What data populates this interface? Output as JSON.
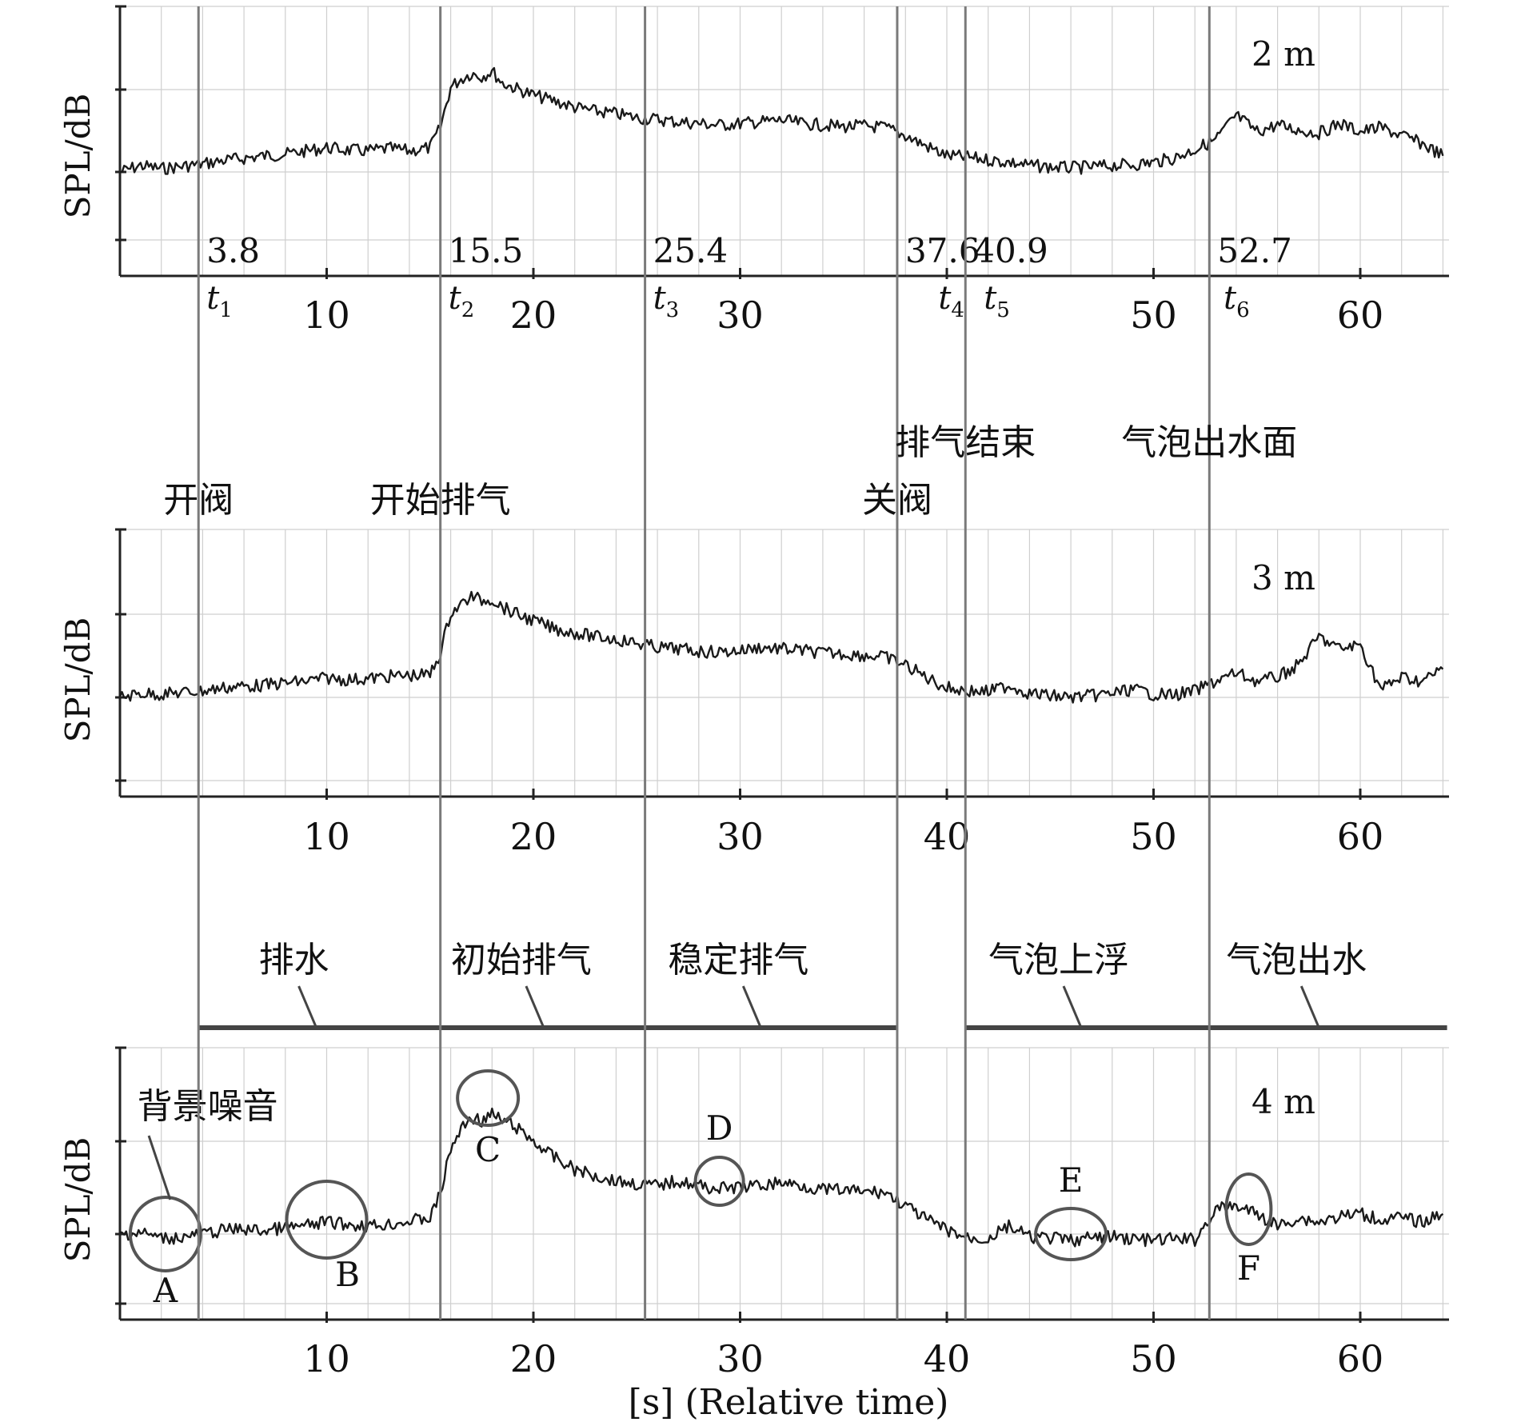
{
  "chart_data": [
    {
      "type": "line",
      "panel_label": "2 m",
      "ylabel": "SPL/dB",
      "xlim": [
        0,
        64
      ],
      "x_ticks": [
        10,
        20,
        30,
        40,
        50,
        60
      ],
      "x_tick_labels": [
        "10",
        "20",
        "30",
        "",
        "50",
        "60"
      ],
      "grid": true,
      "event_times": [
        3.8,
        15.5,
        25.4,
        37.6,
        40.9,
        52.7
      ],
      "event_value_labels": [
        "3.8",
        "15.5",
        "25.4",
        "37.6",
        "40.9",
        "52.7"
      ],
      "event_time_labels": [
        {
          "sym": "t",
          "sub": "1",
          "x": 3.8
        },
        {
          "sym": "t",
          "sub": "2",
          "x": 15.5
        },
        {
          "sym": "t",
          "sub": "3",
          "x": 25.4
        },
        {
          "sym": "t",
          "sub": "4",
          "x": 39.2
        },
        {
          "sym": "t",
          "sub": "5",
          "x": 41.4
        },
        {
          "sym": "t",
          "sub": "6",
          "x": 53.0
        }
      ],
      "series": [
        {
          "x": [
            0,
            1,
            2,
            3,
            4,
            5,
            6,
            7,
            8,
            9,
            10,
            11,
            12,
            13,
            14,
            15,
            15.5,
            16,
            16.5,
            17,
            17.5,
            18,
            18.5,
            19,
            20,
            21,
            22,
            23,
            24,
            25,
            26,
            27,
            28,
            29,
            30,
            31,
            32,
            33,
            34,
            35,
            36,
            37,
            38,
            39,
            40,
            41,
            42,
            43,
            44,
            45,
            46,
            47,
            48,
            49,
            50,
            51,
            52,
            53,
            54,
            55,
            56,
            57,
            58,
            59,
            60,
            61,
            62,
            63,
            64
          ],
          "y": [
            0,
            0.08,
            0.04,
            0.07,
            0.1,
            0.14,
            0.17,
            0.2,
            0.22,
            0.26,
            0.3,
            0.27,
            0.26,
            0.29,
            0.26,
            0.3,
            0.55,
            1.05,
            1.15,
            1.22,
            1.18,
            1.25,
            1.1,
            1.05,
            0.95,
            0.88,
            0.8,
            0.75,
            0.72,
            0.67,
            0.65,
            0.62,
            0.6,
            0.58,
            0.6,
            0.62,
            0.64,
            0.6,
            0.58,
            0.56,
            0.57,
            0.55,
            0.45,
            0.32,
            0.2,
            0.18,
            0.15,
            0.12,
            0.08,
            0.06,
            0.05,
            0.06,
            0.08,
            0.09,
            0.12,
            0.17,
            0.28,
            0.4,
            0.7,
            0.5,
            0.58,
            0.52,
            0.48,
            0.6,
            0.5,
            0.55,
            0.45,
            0.35,
            0.2
          ]
        }
      ]
    },
    {
      "type": "line",
      "panel_label": "3 m",
      "ylabel": "SPL/dB",
      "xlim": [
        0,
        64
      ],
      "x_ticks": [
        10,
        20,
        30,
        40,
        50,
        60
      ],
      "x_tick_labels": [
        "10",
        "20",
        "30",
        "40",
        "50",
        "60"
      ],
      "grid": true,
      "series": [
        {
          "x": [
            0,
            1,
            2,
            3,
            4,
            5,
            6,
            7,
            8,
            9,
            10,
            11,
            12,
            13,
            14,
            15,
            15.5,
            16,
            16.5,
            17,
            17.5,
            18,
            18.5,
            19,
            20,
            21,
            22,
            23,
            24,
            25,
            26,
            27,
            28,
            29,
            30,
            31,
            32,
            33,
            34,
            35,
            36,
            37,
            38,
            39,
            40,
            41,
            42,
            43,
            44,
            45,
            46,
            47,
            48,
            49,
            50,
            51,
            52,
            53,
            54,
            55,
            56,
            57,
            58,
            59,
            60,
            61,
            62,
            63,
            64
          ],
          "y": [
            0,
            0.05,
            0.04,
            0.06,
            0.08,
            0.12,
            0.14,
            0.15,
            0.18,
            0.2,
            0.24,
            0.22,
            0.23,
            0.26,
            0.27,
            0.28,
            0.55,
            1.05,
            1.15,
            1.25,
            1.2,
            1.22,
            1.12,
            1.05,
            0.95,
            0.85,
            0.8,
            0.75,
            0.72,
            0.67,
            0.62,
            0.6,
            0.57,
            0.56,
            0.58,
            0.62,
            0.6,
            0.58,
            0.55,
            0.54,
            0.52,
            0.5,
            0.4,
            0.25,
            0.12,
            0.08,
            0.07,
            0.15,
            0.05,
            0.02,
            0.0,
            0.02,
            0.05,
            0.1,
            0.04,
            0.03,
            0.08,
            0.2,
            0.3,
            0.2,
            0.25,
            0.4,
            0.75,
            0.6,
            0.65,
            0.1,
            0.25,
            0.2,
            0.35
          ]
        }
      ]
    },
    {
      "type": "line",
      "panel_label": "4 m",
      "ylabel": "SPL/dB",
      "xlabel": "[s] (Relative time)",
      "xlim": [
        0,
        64
      ],
      "x_ticks": [
        10,
        20,
        30,
        40,
        50,
        60
      ],
      "x_tick_labels": [
        "10",
        "20",
        "30",
        "40",
        "50",
        "60"
      ],
      "grid": true,
      "series": [
        {
          "x": [
            0,
            1,
            2,
            3,
            4,
            5,
            6,
            7,
            8,
            9,
            10,
            11,
            12,
            13,
            14,
            15,
            15.5,
            16,
            16.5,
            17,
            17.5,
            18,
            18.5,
            19,
            20,
            21,
            22,
            23,
            24,
            25,
            26,
            27,
            28,
            29,
            30,
            31,
            32,
            33,
            34,
            35,
            36,
            37,
            38,
            39,
            40,
            41,
            42,
            43,
            44,
            45,
            46,
            47,
            48,
            49,
            50,
            51,
            52,
            53,
            54,
            55,
            56,
            57,
            58,
            59,
            60,
            61,
            62,
            63,
            64
          ],
          "y": [
            0,
            0.02,
            -0.05,
            -0.04,
            0.0,
            0.05,
            0.06,
            0.04,
            0.08,
            0.1,
            0.15,
            0.12,
            0.1,
            0.12,
            0.16,
            0.2,
            0.5,
            1.05,
            1.3,
            1.45,
            1.4,
            1.48,
            1.4,
            1.35,
            1.15,
            0.95,
            0.8,
            0.72,
            0.66,
            0.62,
            0.6,
            0.66,
            0.6,
            0.56,
            0.58,
            0.6,
            0.64,
            0.6,
            0.55,
            0.54,
            0.52,
            0.52,
            0.35,
            0.18,
            0.05,
            -0.05,
            -0.06,
            0.1,
            -0.04,
            -0.05,
            -0.08,
            -0.05,
            -0.03,
            -0.06,
            -0.08,
            -0.06,
            -0.07,
            0.3,
            0.35,
            0.25,
            0.1,
            0.2,
            0.15,
            0.22,
            0.25,
            0.18,
            0.2,
            0.15,
            0.25
          ]
        }
      ],
      "phases": [
        {
          "label": "排水",
          "x_start": 3.8,
          "x_end": 15.5,
          "label_x": 9.5
        },
        {
          "label": "初始排气",
          "x_start": 15.5,
          "x_end": 25.4,
          "label_x": 20.5
        },
        {
          "label": "稳定排气",
          "x_start": 25.4,
          "x_end": 37.6,
          "label_x": 31
        },
        {
          "label": "气泡上浮",
          "x_start": 40.9,
          "x_end": 52.7,
          "label_x": 46.5
        },
        {
          "label": "气泡出水",
          "x_start": 52.7,
          "x_end": 64.2,
          "label_x": 58
        }
      ],
      "circled_regions": [
        {
          "label": "A",
          "x": 2.2
        },
        {
          "label": "B",
          "x": 10.0
        },
        {
          "label": "C",
          "x": 17.8
        },
        {
          "label": "D",
          "x": 29.0
        },
        {
          "label": "E",
          "x": 46.0
        },
        {
          "label": "F",
          "x": 54.6
        }
      ],
      "annotations": [
        {
          "text": "背景噪音",
          "x": 4.9
        }
      ]
    }
  ],
  "events": [
    {
      "label": "开阀",
      "x": 3.8
    },
    {
      "label": "开始排气",
      "x": 15.5
    },
    {
      "label": "关阀",
      "x": 37.6
    },
    {
      "label": "排气结束",
      "x": 40.9
    },
    {
      "label": "气泡出水面",
      "x": 52.7
    }
  ]
}
